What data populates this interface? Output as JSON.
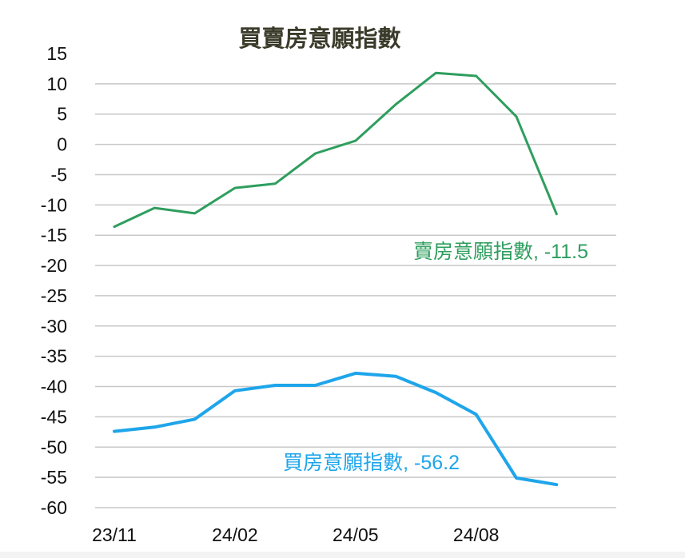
{
  "chart_data": {
    "type": "line",
    "title": "買賣房意願指數",
    "xlabel": "",
    "ylabel": "",
    "ylim": [
      -60,
      15
    ],
    "yticks": [
      15,
      10,
      5,
      0,
      -5,
      -10,
      -15,
      -20,
      -25,
      -30,
      -35,
      -40,
      -45,
      -50,
      -55,
      -60
    ],
    "xticks": [
      "23/11",
      "24/02",
      "24/05",
      "24/08"
    ],
    "x": [
      "23/11",
      "23/12",
      "24/01",
      "24/02",
      "24/03",
      "24/04",
      "24/05",
      "24/06",
      "24/07",
      "24/08",
      "24/09",
      "24/10"
    ],
    "grid": true,
    "series": [
      {
        "name": "賣房意願指數",
        "label": "賣房意願指數, -11.5",
        "color": "#2e9e5e",
        "values": [
          -13.6,
          -10.5,
          -11.4,
          -7.2,
          -6.5,
          -1.5,
          0.6,
          6.6,
          11.8,
          11.3,
          4.6,
          -11.5
        ]
      },
      {
        "name": "買房意願指數",
        "label": "買房意願指數, -56.2",
        "color": "#1ea5ea",
        "values": [
          -47.4,
          -46.7,
          -45.4,
          -40.7,
          -39.8,
          -39.8,
          -37.8,
          -38.3,
          -41.0,
          -44.6,
          -55.1,
          -56.2
        ]
      }
    ]
  }
}
